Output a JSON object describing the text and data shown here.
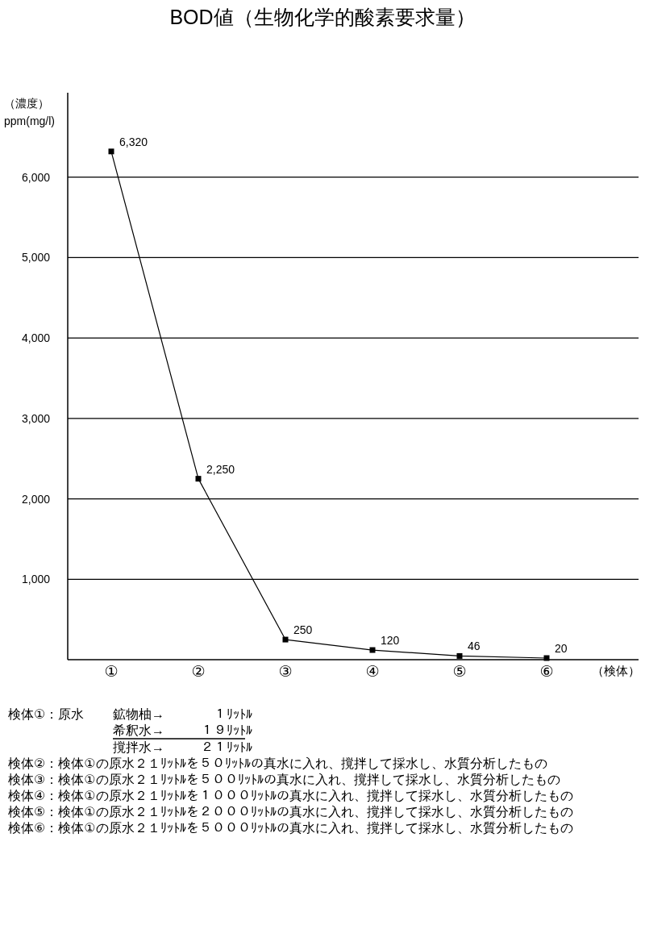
{
  "chart_data": {
    "type": "line",
    "title": "BOD値（生物化学的酸素要求量）",
    "ylabel": "（濃度）\nppm(mg/l)",
    "xlabel": "（検体）",
    "categories": [
      "①",
      "②",
      "③",
      "④",
      "⑤",
      "⑥"
    ],
    "series": [
      {
        "color": "#000000",
        "values": [
          6320,
          2250,
          250,
          120,
          46,
          20
        ],
        "value_labels": [
          "6,320",
          "2,250",
          "250",
          "120",
          "46",
          "20"
        ]
      }
    ],
    "ylim": [
      0,
      7050
    ],
    "yticks": [
      {
        "value": 1000,
        "label": "1,000"
      },
      {
        "value": 2000,
        "label": "2,000"
      },
      {
        "value": 3000,
        "label": "3,000"
      },
      {
        "value": 4000,
        "label": "4,000"
      },
      {
        "value": 5000,
        "label": "5,000"
      },
      {
        "value": 6000,
        "label": "6,000"
      }
    ],
    "grid": "y",
    "marker": "square",
    "line_style": "solid",
    "annotations": [
      "検体①：原水",
      "鉱物柚→",
      "１ﾘｯﾄﾙ",
      "希釈水→",
      "１９ﾘｯﾄﾙ",
      "撹拌水→",
      "２１ﾘｯﾄﾙ",
      "検体②：検体①の原水２１ﾘｯﾄﾙを５０ﾘｯﾄﾙの真水に入れ、撹拌して採水し、水質分析したもの",
      "検体③：検体①の原水２１ﾘｯﾄﾙを５００ﾘｯﾄﾙの真水に入れ、撹拌して採水し、水質分析したもの",
      "検体④：検体①の原水２１ﾘｯﾄﾙを１０００ﾘｯﾄﾙの真水に入れ、撹拌して採水し、水質分析したもの",
      "検体⑤：検体①の原水２１ﾘｯﾄﾙを２０００ﾘｯﾄﾙの真水に入れ、撹拌して採水し、水質分析したもの",
      "検体⑥：検体①の原水２１ﾘｯﾄﾙを５０００ﾘｯﾄﾙの真水に入れ、撹拌して採水し、水質分析したもの"
    ]
  }
}
